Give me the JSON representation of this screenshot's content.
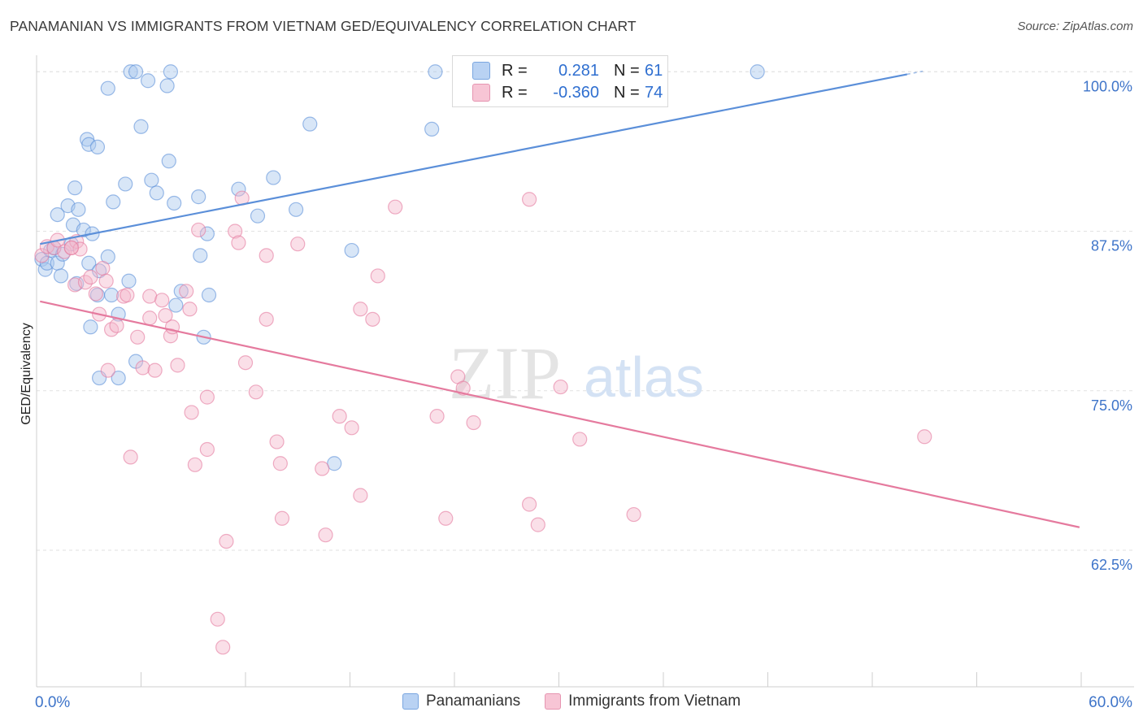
{
  "header": {
    "title": "PANAMANIAN VS IMMIGRANTS FROM VIETNAM GED/EQUIVALENCY CORRELATION CHART",
    "source": "Source: ZipAtlas.com"
  },
  "watermark": {
    "part1": "ZIP",
    "part2": "atlas"
  },
  "stats_box": {
    "rows": [
      {
        "r_label": "R =",
        "r_value": "0.281",
        "n_label": "N =",
        "n_value": "61",
        "color": "#5b8fd9"
      },
      {
        "r_label": "R =",
        "r_value": "-0.360",
        "n_label": "N =",
        "n_value": "74",
        "color": "#e57a9e"
      }
    ]
  },
  "chart_data": {
    "type": "scatter",
    "title": "PANAMANIAN VS IMMIGRANTS FROM VIETNAM GED/EQUIVALENCY CORRELATION CHART",
    "xlabel": "",
    "ylabel": "GED/Equivalency",
    "xlim": [
      0,
      60
    ],
    "ylim": [
      51.8,
      101.8
    ],
    "x_tick_labels": [
      "0.0%",
      "60.0%"
    ],
    "x_tick_values": [
      0,
      60
    ],
    "y_ticks": [
      {
        "value": 100,
        "label": "100.0%"
      },
      {
        "value": 87.5,
        "label": "87.5%"
      },
      {
        "value": 75,
        "label": "75.0%"
      },
      {
        "value": 62.5,
        "label": "62.5%"
      }
    ],
    "grid": true,
    "legend_position": "bottom-center",
    "series": [
      {
        "name": "Panamanians",
        "color": "#5b8fd9",
        "fill": "#a9c7ee",
        "trend": {
          "x": [
            0.2,
            50
          ],
          "y": [
            86.5,
            99.8
          ]
        },
        "points": [
          [
            0.3,
            85.3
          ],
          [
            0.5,
            84.5
          ],
          [
            0.6,
            85.0
          ],
          [
            0.8,
            86.0
          ],
          [
            1.0,
            86.2
          ],
          [
            1.2,
            85.0
          ],
          [
            1.5,
            85.7
          ],
          [
            1.4,
            84.0
          ],
          [
            1.8,
            89.5
          ],
          [
            1.2,
            88.8
          ],
          [
            2.1,
            88.0
          ],
          [
            2.4,
            89.2
          ],
          [
            2.7,
            87.6
          ],
          [
            2.2,
            90.9
          ],
          [
            3.0,
            85.0
          ],
          [
            2.3,
            83.4
          ],
          [
            3.6,
            84.4
          ],
          [
            3.5,
            82.5
          ],
          [
            3.2,
            87.3
          ],
          [
            4.1,
            85.5
          ],
          [
            4.4,
            89.8
          ],
          [
            4.7,
            81.0
          ],
          [
            5.3,
            83.6
          ],
          [
            5.1,
            91.2
          ],
          [
            5.7,
            77.3
          ],
          [
            4.1,
            98.7
          ],
          [
            2.9,
            94.7
          ],
          [
            3.0,
            94.3
          ],
          [
            3.5,
            94.1
          ],
          [
            6.0,
            95.7
          ],
          [
            5.4,
            100.0
          ],
          [
            5.7,
            100.0
          ],
          [
            6.4,
            99.3
          ],
          [
            7.5,
            98.9
          ],
          [
            7.7,
            100.0
          ],
          [
            7.6,
            93.0
          ],
          [
            6.6,
            91.5
          ],
          [
            6.9,
            90.5
          ],
          [
            7.9,
            89.7
          ],
          [
            9.3,
            90.2
          ],
          [
            9.8,
            87.3
          ],
          [
            9.4,
            85.6
          ],
          [
            8.3,
            82.8
          ],
          [
            8.0,
            81.7
          ],
          [
            9.9,
            82.5
          ],
          [
            9.6,
            79.2
          ],
          [
            11.6,
            90.8
          ],
          [
            12.7,
            88.7
          ],
          [
            13.6,
            91.7
          ],
          [
            14.9,
            89.2
          ],
          [
            15.7,
            95.9
          ],
          [
            18.1,
            86.0
          ],
          [
            17.1,
            69.3
          ],
          [
            4.7,
            76.0
          ],
          [
            3.6,
            76.0
          ],
          [
            22.7,
            95.5
          ],
          [
            22.9,
            100.0
          ],
          [
            41.4,
            100.0
          ],
          [
            4.3,
            82.5
          ],
          [
            3.1,
            80.0
          ],
          [
            2.0,
            86.5
          ]
        ]
      },
      {
        "name": "Immigrants from Vietnam",
        "color": "#e57a9e",
        "fill": "#f5b9cc",
        "trend": {
          "x": [
            0.2,
            59.9
          ],
          "y": [
            82.0,
            64.3
          ]
        },
        "points": [
          [
            0.3,
            85.6
          ],
          [
            0.6,
            86.3
          ],
          [
            1.0,
            86.2
          ],
          [
            1.2,
            86.8
          ],
          [
            1.6,
            85.9
          ],
          [
            2.0,
            86.2
          ],
          [
            2.3,
            86.7
          ],
          [
            2.2,
            83.3
          ],
          [
            2.5,
            86.1
          ],
          [
            2.8,
            83.5
          ],
          [
            3.1,
            83.9
          ],
          [
            3.4,
            82.6
          ],
          [
            3.6,
            81.0
          ],
          [
            3.8,
            84.6
          ],
          [
            4.0,
            83.6
          ],
          [
            4.3,
            79.8
          ],
          [
            4.6,
            80.1
          ],
          [
            4.1,
            76.6
          ],
          [
            5.0,
            82.4
          ],
          [
            5.2,
            82.5
          ],
          [
            5.4,
            69.8
          ],
          [
            5.8,
            79.2
          ],
          [
            6.1,
            76.8
          ],
          [
            6.5,
            80.7
          ],
          [
            6.5,
            82.4
          ],
          [
            6.8,
            76.6
          ],
          [
            7.2,
            82.1
          ],
          [
            7.4,
            80.9
          ],
          [
            7.7,
            79.3
          ],
          [
            7.8,
            80.0
          ],
          [
            8.1,
            77.0
          ],
          [
            8.6,
            82.8
          ],
          [
            8.8,
            81.4
          ],
          [
            8.9,
            73.3
          ],
          [
            9.1,
            69.2
          ],
          [
            9.3,
            87.6
          ],
          [
            9.8,
            70.4
          ],
          [
            9.8,
            74.5
          ],
          [
            10.4,
            57.1
          ],
          [
            10.7,
            54.9
          ],
          [
            10.9,
            63.2
          ],
          [
            11.4,
            87.5
          ],
          [
            11.6,
            86.6
          ],
          [
            11.8,
            90.1
          ],
          [
            12.0,
            77.2
          ],
          [
            12.6,
            74.9
          ],
          [
            13.2,
            85.6
          ],
          [
            13.2,
            80.6
          ],
          [
            13.8,
            71.0
          ],
          [
            14.0,
            69.3
          ],
          [
            14.1,
            65.0
          ],
          [
            15.0,
            86.5
          ],
          [
            16.4,
            68.9
          ],
          [
            16.6,
            63.7
          ],
          [
            17.4,
            73.0
          ],
          [
            18.1,
            72.1
          ],
          [
            18.6,
            81.4
          ],
          [
            18.6,
            66.8
          ],
          [
            19.3,
            80.6
          ],
          [
            19.6,
            84.0
          ],
          [
            20.6,
            89.4
          ],
          [
            23.0,
            73.0
          ],
          [
            23.5,
            65.0
          ],
          [
            24.2,
            76.1
          ],
          [
            24.5,
            75.2
          ],
          [
            25.1,
            72.5
          ],
          [
            28.3,
            66.1
          ],
          [
            28.3,
            90.0
          ],
          [
            28.8,
            64.5
          ],
          [
            30.1,
            75.3
          ],
          [
            31.2,
            71.2
          ],
          [
            34.3,
            65.3
          ],
          [
            51.0,
            71.4
          ],
          [
            2.0,
            86.2
          ]
        ]
      }
    ]
  }
}
